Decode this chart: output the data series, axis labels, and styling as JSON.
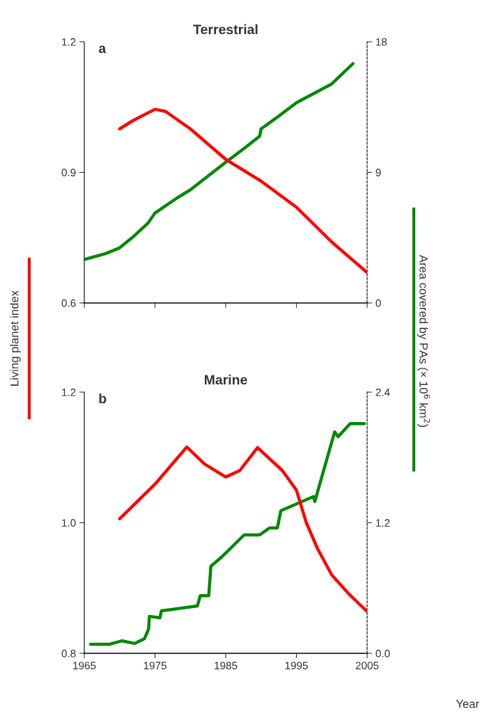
{
  "chart_data": [
    {
      "type": "line",
      "title": "Terrestrial",
      "ylabel": "Living planet index",
      "annotations": [
        "a"
      ],
      "xlim": [
        1965,
        2005
      ],
      "xticks": [
        1965,
        1975,
        1985,
        1995,
        2005
      ],
      "ylim": [
        0.6,
        1.2
      ],
      "yticks": [
        0.6,
        0.9,
        1.2
      ],
      "y2lim": [
        0,
        18
      ],
      "y2ticks": [
        0,
        9,
        18
      ],
      "tick_labels": "y",
      "grid": false,
      "legend": false,
      "series": [
        {
          "color": "#ff0000",
          "x": [
            1970,
            1972,
            1975,
            1976.5,
            1980,
            1985,
            1990,
            1995,
            2000,
            2005
          ],
          "values": [
            1.0,
            1.02,
            1.045,
            1.04,
            1.0,
            0.93,
            0.88,
            0.82,
            0.74,
            0.67
          ]
        },
        {
          "color": "#008800",
          "axis": "y2",
          "x": [
            1965,
            1968,
            1970,
            1972,
            1974,
            1975,
            1978,
            1980,
            1985,
            1988,
            1989.8,
            1990,
            1992,
            1995,
            2000,
            2003
          ],
          "values": [
            3.0,
            3.4,
            3.8,
            4.6,
            5.5,
            6.2,
            7.2,
            7.8,
            9.7,
            10.8,
            11.5,
            12.0,
            12.7,
            13.8,
            15.1,
            16.5
          ]
        }
      ]
    },
    {
      "type": "line",
      "title": "Marine",
      "xlabel": "Year",
      "y2label": "Area covered by PAs (× 10$^{6}$ km$^{2}$)",
      "annotations": [
        "b"
      ],
      "xlim": [
        1965,
        2005
      ],
      "xticks": [
        1965,
        1975,
        1985,
        1995,
        2005
      ],
      "ylim": [
        0.8,
        1.2
      ],
      "yticks": [
        0.8,
        {
          "value": 1.0,
          "label": "1.0"
        },
        1.2
      ],
      "y2lim": [
        0,
        2.4
      ],
      "y2ticks": [
        {
          "value": 0,
          "label": "0.0"
        },
        1.2,
        2.4
      ],
      "grid": false,
      "legend": false,
      "series": [
        {
          "color": "#ff0000",
          "x": [
            1970,
            1975,
            1979.5,
            1982,
            1985,
            1987,
            1989.5,
            1993,
            1995,
            1996.4,
            1998,
            2000,
            2002.5,
            2005
          ],
          "values": [
            1.006,
            1.059,
            1.116,
            1.09,
            1.07,
            1.08,
            1.115,
            1.08,
            1.05,
            1.0,
            0.96,
            0.92,
            0.89,
            0.864
          ]
        },
        {
          "color": "#008800",
          "axis": "y2",
          "x": [
            1965.9,
            1968.5,
            1970.3,
            1972.1,
            1973.5,
            1974.1,
            1974.2,
            1975.7,
            1975.9,
            1981.0,
            1981.4,
            1982.6,
            1982.9,
            1984.4,
            1987.6,
            1989.8,
            1991.2,
            1992.3,
            1992.8,
            1997.4,
            1997.6,
            2000.4,
            2000.9,
            2002.6,
            2004.6
          ],
          "values": [
            0.083,
            0.083,
            0.115,
            0.09,
            0.134,
            0.224,
            0.34,
            0.326,
            0.39,
            0.435,
            0.53,
            0.53,
            0.8,
            0.883,
            1.088,
            1.088,
            1.152,
            1.152,
            1.31,
            1.44,
            1.395,
            2.035,
            1.99,
            2.11,
            2.11
          ]
        }
      ]
    }
  ]
}
